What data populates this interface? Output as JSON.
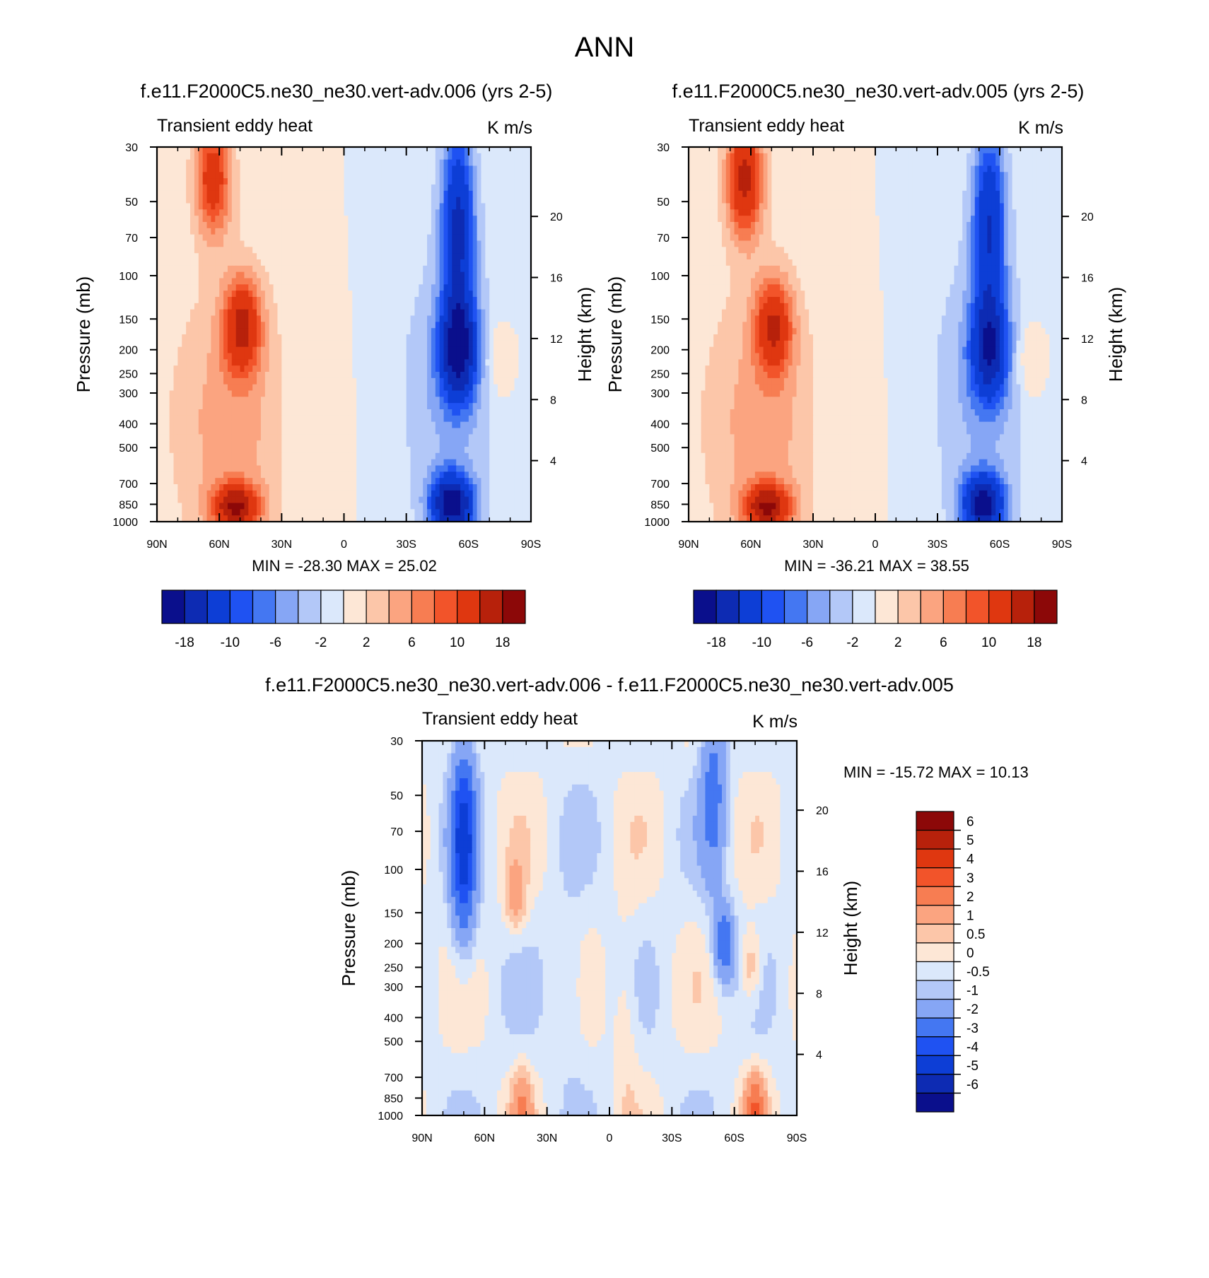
{
  "title": "ANN",
  "panels": [
    {
      "id": "p1",
      "title": "f.e11.F2000C5.ne30_ne30.vert-adv.006 (yrs 2-5)",
      "left_label": "Transient eddy heat",
      "right_label": "K m/s",
      "stats": "MIN = -28.30  MAX =  25.02",
      "peaks": {
        "nh_upper": 12,
        "nh_mid": 13,
        "nh_low": 16,
        "sh_upper": -14,
        "sh_mid": -17,
        "sh_low": -20
      }
    },
    {
      "id": "p2",
      "title": "f.e11.F2000C5.ne30_ne30.vert-adv.005 (yrs 2-5)",
      "left_label": "Transient eddy heat",
      "right_label": "K m/s",
      "stats": "MIN = -36.21  MAX =  38.55",
      "peaks": {
        "nh_upper": 15,
        "nh_mid": 12,
        "nh_low": 16,
        "sh_upper": -13,
        "sh_mid": -14,
        "sh_low": -19
      }
    },
    {
      "id": "p3",
      "title": "f.e11.F2000C5.ne30_ne30.vert-adv.006 - f.e11.F2000C5.ne30_ne30.vert-adv.005",
      "left_label": "Transient eddy heat",
      "right_label": "K m/s",
      "stats": "MIN = -15.72  MAX =  10.13"
    }
  ],
  "chart_data": {
    "type": "heatmap",
    "x_tick_labels": [
      "90N",
      "60N",
      "30N",
      "0",
      "30S",
      "60S",
      "90S"
    ],
    "x_ticks_deg": [
      90,
      60,
      30,
      0,
      -30,
      -60,
      -90
    ],
    "y_left_label": "Pressure (mb)",
    "y_left_ticks": [
      30,
      50,
      70,
      100,
      150,
      200,
      250,
      300,
      400,
      500,
      700,
      850,
      1000
    ],
    "y_left_range": [
      30,
      1000
    ],
    "y_right_label": "Height (km)",
    "y_right_ticks": [
      4,
      8,
      12,
      16,
      20
    ],
    "colorbar_main": {
      "levels": [
        -18,
        -14,
        -10,
        -8,
        -6,
        -4,
        -2,
        0,
        2,
        4,
        6,
        8,
        10,
        14,
        18
      ],
      "tick_labels": [
        "-18",
        "-10",
        "-6",
        "-2",
        "2",
        "6",
        "10",
        "18"
      ],
      "colors": [
        "#0a0f8c",
        "#0d2bb3",
        "#0d3ed6",
        "#1f52f2",
        "#4477f2",
        "#86a6f5",
        "#b3c8f8",
        "#dbe8fb",
        "#fde7d6",
        "#fcc6a9",
        "#fba480",
        "#f77d52",
        "#f2542a",
        "#df3710",
        "#b7210b",
        "#8c0808"
      ]
    },
    "colorbar_diff": {
      "levels": [
        -6,
        -5,
        -4,
        -3,
        -2,
        -1,
        -0.5,
        0,
        0.5,
        1,
        2,
        3,
        4,
        5,
        6
      ],
      "tick_labels": [
        "6",
        "5",
        "4",
        "3",
        "2",
        "1",
        "0.5",
        "0",
        "-0.5",
        "-1",
        "-2",
        "-3",
        "-4",
        "-5",
        "-6"
      ],
      "colors": [
        "#0a0f8c",
        "#0d2bb3",
        "#0d3ed6",
        "#1f52f2",
        "#4477f2",
        "#86a6f5",
        "#b3c8f8",
        "#dbe8fb",
        "#fde7d6",
        "#fcc6a9",
        "#fba480",
        "#f77d52",
        "#f2542a",
        "#df3710",
        "#b7210b",
        "#8c0808"
      ]
    },
    "diff_features": [
      {
        "lat": 70,
        "p": 80,
        "value": -4.2
      },
      {
        "lat": -50,
        "p": 45,
        "value": -2.2
      },
      {
        "lat": -55,
        "p": 200,
        "value": -2.8
      },
      {
        "lat": 45,
        "p": 130,
        "value": 1.5
      },
      {
        "lat": -68,
        "p": 250,
        "value": 1.4
      },
      {
        "lat": -70,
        "p": 960,
        "value": 3.0
      },
      {
        "lat": 42,
        "p": 930,
        "value": 2.0
      }
    ]
  }
}
